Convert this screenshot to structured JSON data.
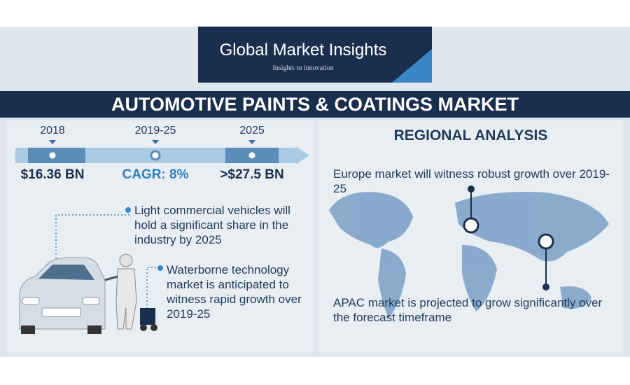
{
  "header": {
    "brand": "Global Market Insights",
    "tagline": "Insights to innovation"
  },
  "title": "AUTOMOTIVE PAINTS & COATINGS MARKET",
  "timeline": [
    {
      "period": "2018",
      "value": "$16.36 BN"
    },
    {
      "period": "2019-25",
      "value": "CAGR: 8%"
    },
    {
      "period": "2025",
      "value": ">$27.5 BN"
    }
  ],
  "left_notes": [
    "Light commercial vehicles will hold a significant share in the industry by 2025",
    "Waterborne technology market is anticipated to witness rapid growth over 2019-25"
  ],
  "regional": {
    "heading": "REGIONAL ANALYSIS",
    "notes": [
      "Europe market will witness robust growth over 2019-25",
      "APAC market is projected to grow significantly over the forecast timeframe"
    ]
  }
}
